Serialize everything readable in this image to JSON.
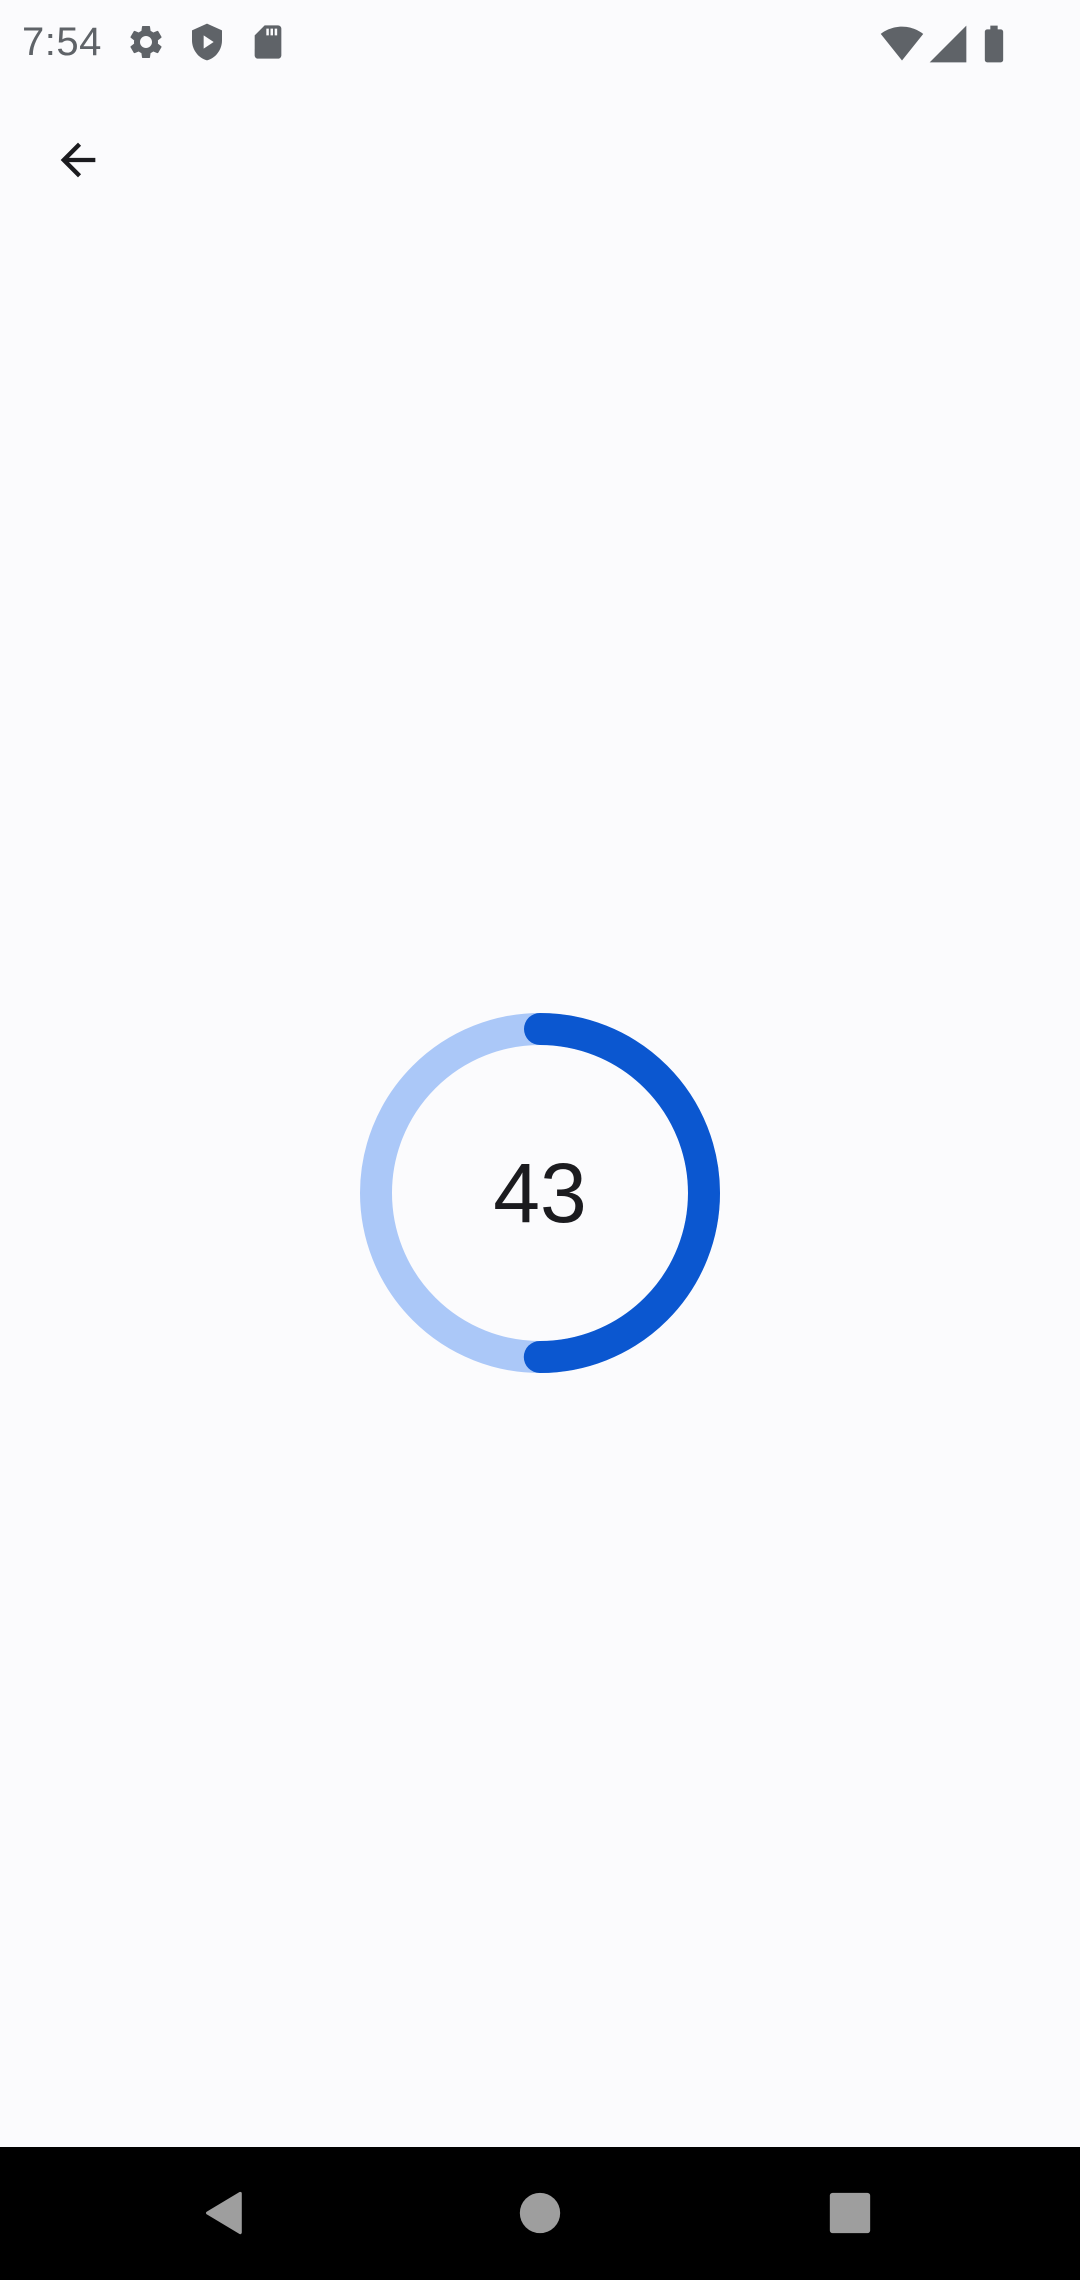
{
  "status_bar": {
    "time": "7:54",
    "left_icons": [
      "settings-gear-icon",
      "play-protect-shield-icon",
      "sd-card-icon"
    ],
    "right_icons": [
      "wifi-icon",
      "cellular-signal-icon",
      "battery-icon"
    ]
  },
  "top_bar": {
    "back_icon": "arrow-back-icon"
  },
  "progress": {
    "label": "43",
    "fraction": 0.5,
    "track_color": "#abc8f8",
    "indicator_color": "#0b57d0"
  },
  "nav_bar": {
    "buttons": [
      "back-triangle-icon",
      "home-circle-icon",
      "recents-square-icon"
    ]
  },
  "colors": {
    "background": "#fbfbfd",
    "status_icon": "#5f6368",
    "nav_bar": "#000000",
    "nav_icon": "#9e9e9e"
  }
}
